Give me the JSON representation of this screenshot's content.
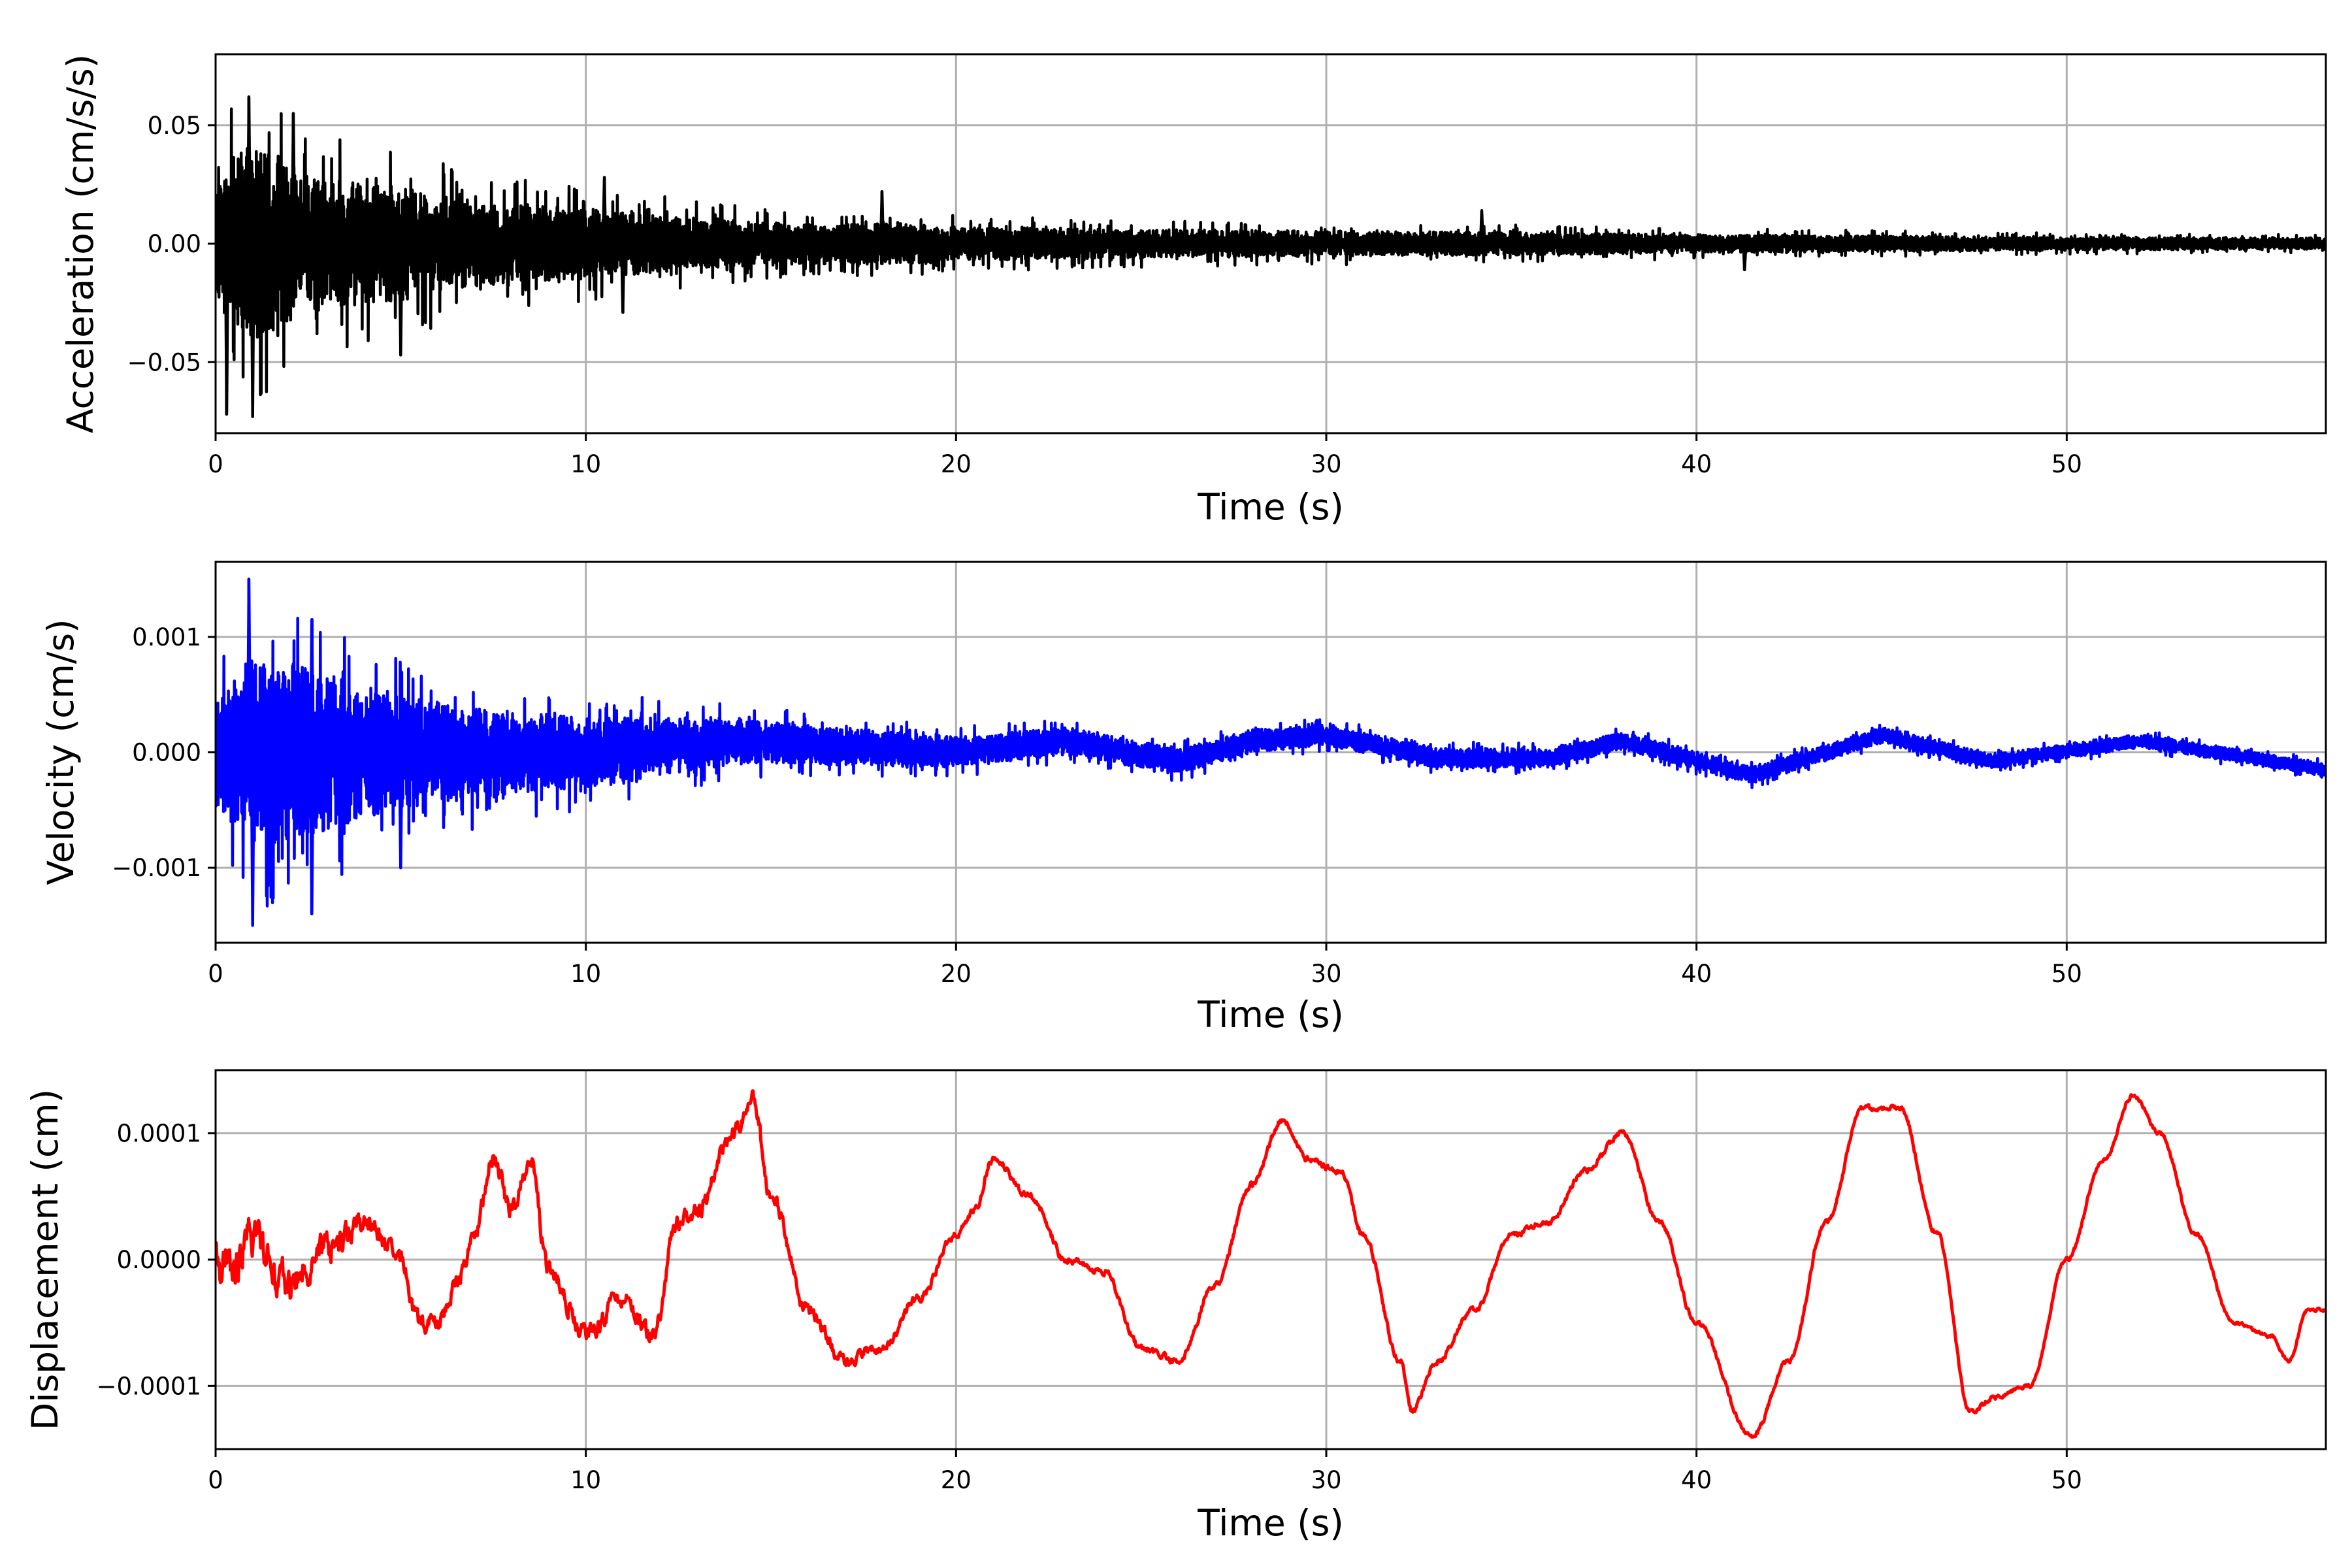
{
  "chart_data": [
    {
      "type": "line",
      "id": "acceleration",
      "xlabel": "Time (s)",
      "ylabel": "Acceleration (cm/s/s)",
      "xlim": [
        0,
        57
      ],
      "ylim": [
        -0.08,
        0.08
      ],
      "xticks": [
        0,
        10,
        20,
        30,
        40,
        50
      ],
      "xtick_labels": [
        "0",
        "10",
        "20",
        "30",
        "40",
        "50"
      ],
      "yticks": [
        -0.05,
        0.0,
        0.05
      ],
      "ytick_labels": [
        "−0.05",
        "0.00",
        "0.05"
      ],
      "grid": true,
      "series": [
        {
          "color": "#000000",
          "envelope": [
            {
              "t": 0,
              "amp": 0.04
            },
            {
              "t": 0.5,
              "amp": 0.06
            },
            {
              "t": 1,
              "amp": 0.07
            },
            {
              "t": 2,
              "amp": 0.055
            },
            {
              "t": 3,
              "amp": 0.045
            },
            {
              "t": 5,
              "amp": 0.04
            },
            {
              "t": 7,
              "amp": 0.03
            },
            {
              "t": 10,
              "amp": 0.025
            },
            {
              "t": 13,
              "amp": 0.018
            },
            {
              "t": 16,
              "amp": 0.014
            },
            {
              "t": 18,
              "amp": 0.015
            },
            {
              "t": 20,
              "amp": 0.012
            },
            {
              "t": 25,
              "amp": 0.01
            },
            {
              "t": 30,
              "amp": 0.009
            },
            {
              "t": 35,
              "amp": 0.008
            },
            {
              "t": 40,
              "amp": 0.0065
            },
            {
              "t": 45,
              "amp": 0.0055
            },
            {
              "t": 50,
              "amp": 0.0045
            },
            {
              "t": 57,
              "amp": 0.004
            }
          ],
          "peaks": [
            {
              "t": 0.9,
              "v": 0.062
            },
            {
              "t": 1.0,
              "v": -0.073
            },
            {
              "t": 0.3,
              "v": -0.072
            },
            {
              "t": 2.1,
              "v": 0.055
            },
            {
              "t": 5.0,
              "v": -0.047
            },
            {
              "t": 10.5,
              "v": 0.028
            },
            {
              "t": 11.0,
              "v": -0.029
            },
            {
              "t": 18.0,
              "v": 0.022
            },
            {
              "t": 34.2,
              "v": 0.014
            },
            {
              "t": 41.3,
              "v": -0.011
            }
          ]
        }
      ]
    },
    {
      "type": "line",
      "id": "velocity",
      "xlabel": "Time (s)",
      "ylabel": "Velocity (cm/s)",
      "xlim": [
        0,
        57
      ],
      "ylim": [
        -0.00165,
        0.00165
      ],
      "xticks": [
        0,
        10,
        20,
        30,
        40,
        50
      ],
      "xtick_labels": [
        "0",
        "10",
        "20",
        "30",
        "40",
        "50"
      ],
      "yticks": [
        -0.001,
        0.0,
        0.001
      ],
      "ytick_labels": [
        "−0.001",
        "0.000",
        "0.001"
      ],
      "grid": true,
      "series": [
        {
          "color": "#0000ff",
          "envelope": [
            {
              "t": 0,
              "amp": 0.0008
            },
            {
              "t": 1,
              "amp": 0.0014
            },
            {
              "t": 2.6,
              "amp": 0.0012
            },
            {
              "t": 5,
              "amp": 0.0008
            },
            {
              "t": 8,
              "amp": 0.0006
            },
            {
              "t": 10,
              "amp": 0.0005
            },
            {
              "t": 15,
              "amp": 0.0003
            },
            {
              "t": 20,
              "amp": 0.00022
            },
            {
              "t": 25,
              "amp": 0.00018
            },
            {
              "t": 30,
              "amp": 0.00015
            },
            {
              "t": 40,
              "amp": 0.00012
            },
            {
              "t": 50,
              "amp": 0.0001
            },
            {
              "t": 57,
              "amp": 9e-05
            }
          ],
          "trend": [
            {
              "t": 0,
              "v": 0
            },
            {
              "t": 5,
              "v": 0
            },
            {
              "t": 10,
              "v": 0
            },
            {
              "t": 14,
              "v": 0.0001
            },
            {
              "t": 20,
              "v": 0
            },
            {
              "t": 23,
              "v": 0.0001
            },
            {
              "t": 26,
              "v": -8e-05
            },
            {
              "t": 28,
              "v": 0.0001
            },
            {
              "t": 30,
              "v": 0.00015
            },
            {
              "t": 33,
              "v": -5e-05
            },
            {
              "t": 36,
              "v": -5e-05
            },
            {
              "t": 38,
              "v": 0.0001
            },
            {
              "t": 41.5,
              "v": -0.0002
            },
            {
              "t": 45,
              "v": 0.00015
            },
            {
              "t": 48,
              "v": -8e-05
            },
            {
              "t": 52,
              "v": 0.0001
            },
            {
              "t": 56,
              "v": -0.0001
            },
            {
              "t": 57,
              "v": -0.00015
            }
          ],
          "peaks": [
            {
              "t": 0.9,
              "v": 0.0015
            },
            {
              "t": 1.0,
              "v": -0.0015
            },
            {
              "t": 2.6,
              "v": 0.00115
            },
            {
              "t": 2.6,
              "v": -0.0014
            },
            {
              "t": 5.0,
              "v": -0.001
            }
          ]
        }
      ]
    },
    {
      "type": "line",
      "id": "displacement",
      "xlabel": "Time (s)",
      "ylabel": "Displacement (cm)",
      "xlim": [
        0,
        57
      ],
      "ylim": [
        -0.00015,
        0.00015
      ],
      "xticks": [
        0,
        10,
        20,
        30,
        40,
        50
      ],
      "xtick_labels": [
        "0",
        "10",
        "20",
        "30",
        "40",
        "50"
      ],
      "yticks": [
        -0.0001,
        0.0,
        0.0001
      ],
      "ytick_labels": [
        "−0.0001",
        "0.0000",
        "0.0001"
      ],
      "grid": true,
      "series": [
        {
          "color": "#ff0000",
          "points": [
            [
              0,
              0
            ],
            [
              0.5,
              -1e-05
            ],
            [
              1,
              2e-05
            ],
            [
              2,
              -2e-05
            ],
            [
              3,
              1e-05
            ],
            [
              4,
              3e-05
            ],
            [
              5,
              0
            ],
            [
              5.5,
              -5e-05
            ],
            [
              6,
              -5e-05
            ],
            [
              6.5,
              -2e-05
            ],
            [
              7,
              2e-05
            ],
            [
              7.5,
              8e-05
            ],
            [
              8,
              4e-05
            ],
            [
              8.5,
              8e-05
            ],
            [
              9,
              -1e-05
            ],
            [
              10,
              -6e-05
            ],
            [
              11,
              -3e-05
            ],
            [
              11.8,
              -6e-05
            ],
            [
              12.5,
              3e-05
            ],
            [
              13,
              4e-05
            ],
            [
              14,
              0.0001
            ],
            [
              14.5,
              0.00013
            ],
            [
              15,
              5e-05
            ],
            [
              16,
              -4e-05
            ],
            [
              17,
              -8e-05
            ],
            [
              18,
              -7e-05
            ],
            [
              19,
              -3e-05
            ],
            [
              20,
              2e-05
            ],
            [
              20.5,
              4e-05
            ],
            [
              21,
              8e-05
            ],
            [
              22,
              5e-05
            ],
            [
              23,
              0
            ],
            [
              24,
              -1e-05
            ],
            [
              25,
              -7e-05
            ],
            [
              26,
              -8e-05
            ],
            [
              27,
              -2e-05
            ],
            [
              28,
              6e-05
            ],
            [
              28.8,
              0.00011
            ],
            [
              29.5,
              8e-05
            ],
            [
              30.4,
              7e-05
            ],
            [
              31,
              2e-05
            ],
            [
              32,
              -8e-05
            ],
            [
              32.3,
              -0.00012
            ],
            [
              33,
              -8e-05
            ],
            [
              34,
              -4e-05
            ],
            [
              35,
              2e-05
            ],
            [
              36,
              3e-05
            ],
            [
              37,
              7e-05
            ],
            [
              38,
              0.0001
            ],
            [
              39,
              3e-05
            ],
            [
              40,
              -5e-05
            ],
            [
              41.5,
              -0.00014
            ],
            [
              42.5,
              -8e-05
            ],
            [
              43.5,
              3e-05
            ],
            [
              44.5,
              0.00012
            ],
            [
              45.5,
              0.00012
            ],
            [
              46.5,
              2e-05
            ],
            [
              47.4,
              -0.00012
            ],
            [
              48,
              -0.00011
            ],
            [
              49,
              -0.0001
            ],
            [
              50,
              0
            ],
            [
              51,
              8e-05
            ],
            [
              51.8,
              0.00013
            ],
            [
              52.5,
              0.0001
            ],
            [
              53.5,
              2e-05
            ],
            [
              54.5,
              -5e-05
            ],
            [
              55.5,
              -6e-05
            ],
            [
              56,
              -8e-05
            ],
            [
              56.5,
              -4e-05
            ],
            [
              57,
              -4e-05
            ]
          ],
          "wiggle": [
            {
              "t": 0,
              "amp": 2.5e-05
            },
            {
              "t": 5,
              "amp": 1e-05
            },
            {
              "t": 12,
              "amp": 1e-05
            },
            {
              "t": 20,
              "amp": 4e-06
            },
            {
              "t": 57,
              "amp": 2e-06
            }
          ]
        }
      ]
    }
  ]
}
